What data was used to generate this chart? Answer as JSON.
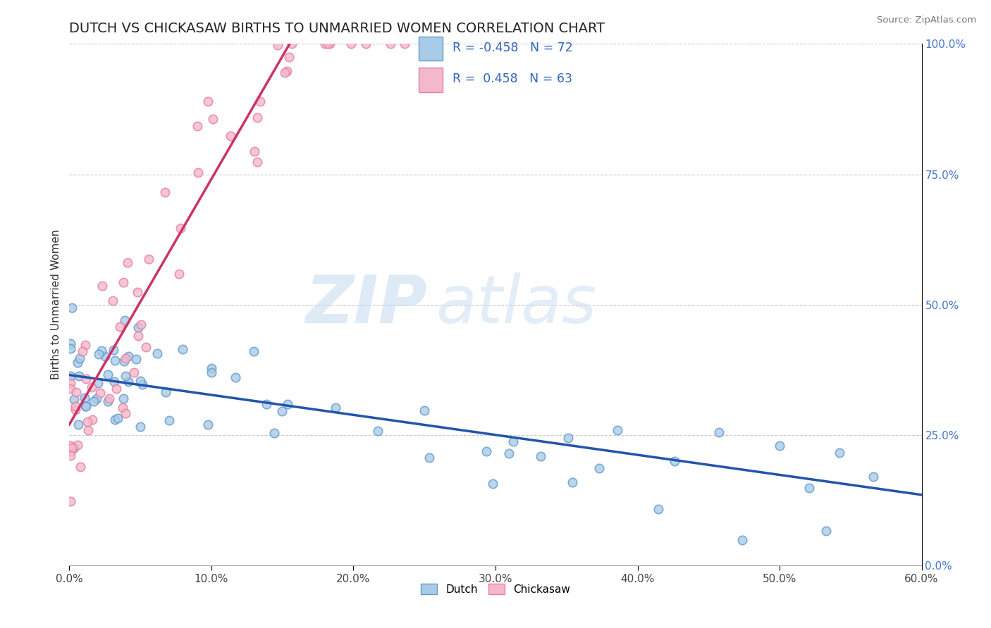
{
  "title": "DUTCH VS CHICKASAW BIRTHS TO UNMARRIED WOMEN CORRELATION CHART",
  "source": "Source: ZipAtlas.com",
  "ylabel": "Births to Unmarried Women",
  "xlim": [
    0.0,
    0.6
  ],
  "ylim": [
    0.0,
    1.0
  ],
  "xticks": [
    0.0,
    0.1,
    0.2,
    0.3,
    0.4,
    0.5,
    0.6
  ],
  "xticklabels": [
    "0.0%",
    "10.0%",
    "20.0%",
    "30.0%",
    "40.0%",
    "50.0%",
    "60.0%"
  ],
  "yticks_right": [
    0.0,
    0.25,
    0.5,
    0.75,
    1.0
  ],
  "yticklabels_right": [
    "0.0%",
    "25.0%",
    "50.0%",
    "75.0%",
    "100.0%"
  ],
  "dutch_color": "#a8cce8",
  "chickasaw_color": "#f4b8cc",
  "dutch_edge_color": "#6699cc",
  "chickasaw_edge_color": "#e87fa0",
  "dutch_line_color": "#2255aa",
  "chickasaw_line_color": "#cc3366",
  "dutch_R": -0.458,
  "dutch_N": 72,
  "chickasaw_R": 0.458,
  "chickasaw_N": 63,
  "legend_dutch_label": "Dutch",
  "legend_chickasaw_label": "Chickasaw",
  "watermark_zip": "ZIP",
  "watermark_atlas": "atlas",
  "background_color": "#ffffff",
  "grid_color": "#cccccc",
  "dutch_trend_x0": 0.0,
  "dutch_trend_y0": 0.365,
  "dutch_trend_x1": 0.6,
  "dutch_trend_y1": 0.135,
  "chickasaw_trend_x0": 0.0,
  "chickasaw_trend_y0": 0.27,
  "chickasaw_trend_x1": 0.155,
  "chickasaw_trend_y1": 1.0
}
